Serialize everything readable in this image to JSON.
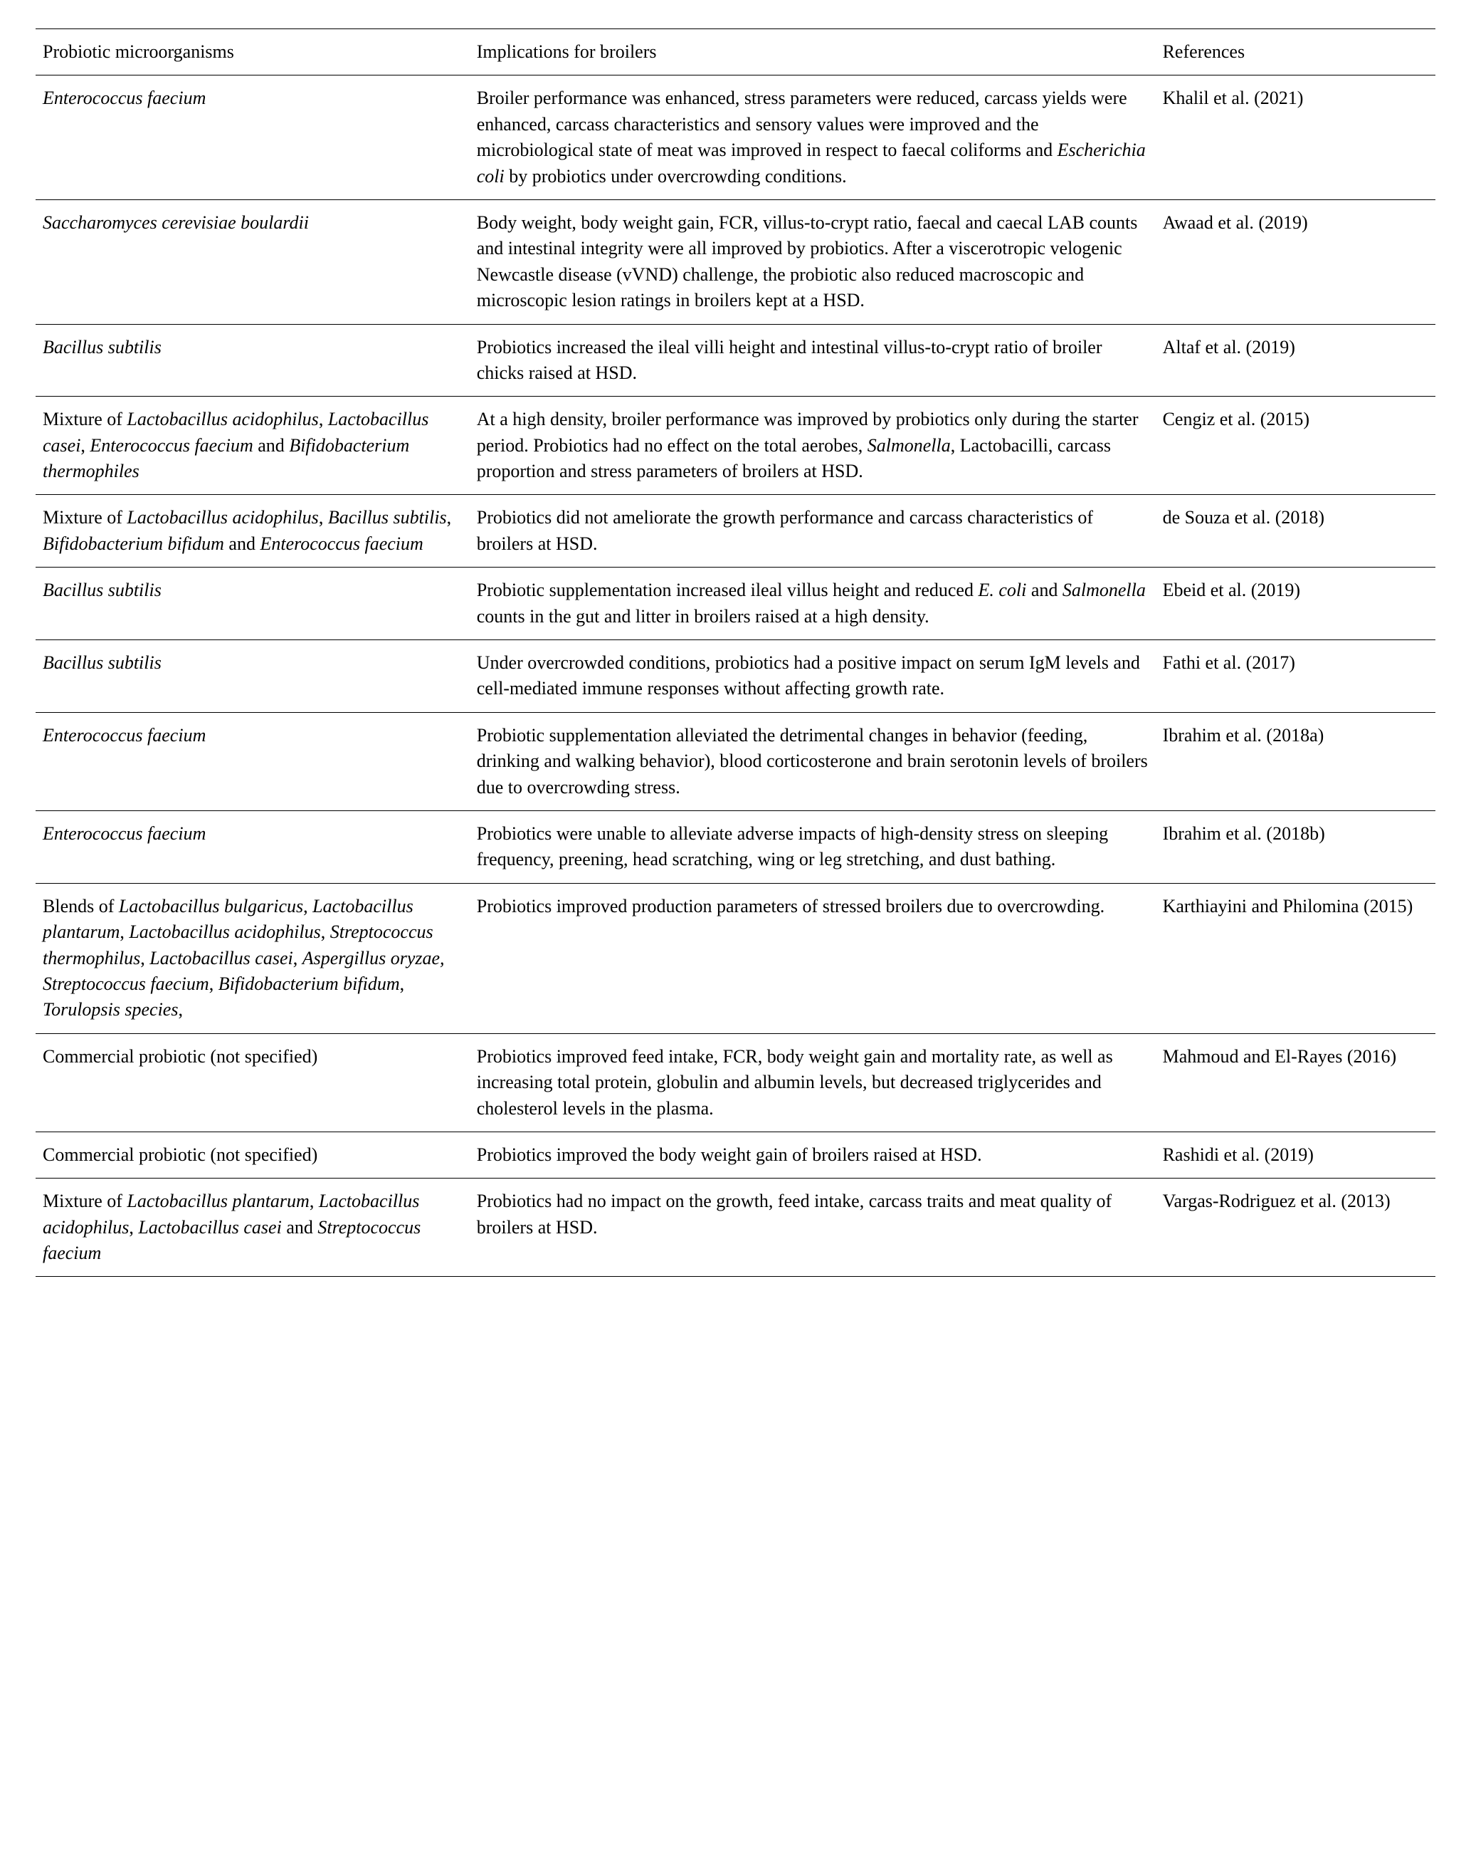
{
  "headers": {
    "col1": "Probiotic microorganisms",
    "col2": "Implications for broilers",
    "col3": "References"
  },
  "rows": [
    {
      "organism_html": "<span class='italic'>Enterococcus faecium</span>",
      "implications_html": "Broiler performance was enhanced, stress parameters were reduced, carcass yields were enhanced, carcass characteristics and sensory values were improved and the microbiological state of meat was improved in respect to faecal coliforms and <span class='italic'>Escherichia coli</span> by probiotics under overcrowding conditions.",
      "reference": "Khalil et al. (2021)"
    },
    {
      "organism_html": "<span class='italic'>Saccharomyces cerevisiae boulardii</span>",
      "implications_html": "Body weight, body weight gain, FCR, villus-to-crypt ratio, faecal and caecal LAB counts and intestinal integrity were all improved by probiotics. After a viscerotropic velogenic Newcastle disease (vVND) challenge, the probiotic also reduced macroscopic and microscopic lesion ratings in broilers kept at a HSD.",
      "reference": "Awaad et al. (2019)"
    },
    {
      "organism_html": "<span class='italic'>Bacillus subtilis</span>",
      "implications_html": "Probiotics increased the ileal villi height and intestinal villus-to-crypt ratio of broiler chicks raised at HSD.",
      "reference": "Altaf et al. (2019)"
    },
    {
      "organism_html": "Mixture of <span class='italic'>Lactobacillus acidophilus</span>, <span class='italic'>Lactobacillus casei</span>, <span class='italic'>Enterococcus faecium</span> and <span class='italic'>Bifidobacterium thermophiles</span>",
      "implications_html": "At a high density, broiler performance was improved by probiotics only during the starter period. Probiotics had no effect on the total aerobes, <span class='italic'>Salmonella</span>, Lactobacilli, carcass proportion and stress parameters of broilers at HSD.",
      "reference": "Cengiz et al. (2015)"
    },
    {
      "organism_html": "Mixture of <span class='italic'>Lactobacillus acidophilus</span>, <span class='italic'>Bacillus subtilis</span>, <span class='italic'>Bifidobacterium bifidum</span> and <span class='italic'>Enterococcus faecium</span>",
      "implications_html": "Probiotics did not ameliorate the growth performance and carcass characteristics of broilers at HSD.",
      "reference": "de Souza et al. (2018)"
    },
    {
      "organism_html": "<span class='italic'>Bacillus subtilis</span>",
      "implications_html": "Probiotic supplementation increased ileal villus height and reduced <span class='italic'>E. coli</span> and <span class='italic'>Salmonella</span> counts in the gut and litter in broilers raised at a high density.",
      "reference": "Ebeid et al. (2019)"
    },
    {
      "organism_html": "<span class='italic'>Bacillus subtilis</span>",
      "implications_html": "Under overcrowded conditions, probiotics had a positive impact on serum IgM levels and cell-mediated immune responses without affecting growth rate.",
      "reference": "Fathi et al. (2017)"
    },
    {
      "organism_html": "<span class='italic'>Enterococcus faecium</span>",
      "implications_html": "Probiotic supplementation alleviated the detrimental changes in behavior (feeding, drinking and walking behavior), blood corticosterone and brain serotonin levels of broilers due to overcrowding stress.",
      "reference": "Ibrahim et al. (2018a)"
    },
    {
      "organism_html": "<span class='italic'>Enterococcus faecium</span>",
      "implications_html": "Probiotics were unable to alleviate adverse impacts of high-density stress on sleeping frequency, preening, head scratching, wing or leg stretching, and dust bathing.",
      "reference": "Ibrahim et al. (2018b)"
    },
    {
      "organism_html": "Blends of <span class='italic'>Lactobacillus bulgaricus</span>, <span class='italic'>Lactobacillus plantarum</span>, <span class='italic'>Lactobacillus acidophilus</span>, <span class='italic'>Streptococcus thermophilus</span>, <span class='italic'>Lactobacillus casei</span>, <span class='italic'>Aspergillus oryzae,</span> <span class='italic'>Streptococcus faecium</span>, <span class='italic'>Bifidobacterium bifidum</span>, <span class='italic'>Torulopsis species</span>,",
      "implications_html": "Probiotics improved production parameters of stressed broilers due to overcrowding.",
      "reference": "Karthiayini and Philomina (2015)"
    },
    {
      "organism_html": "Commercial probiotic (not specified)",
      "implications_html": "Probiotics improved feed intake, FCR, body weight gain and mortality rate, as well as increasing total protein, globulin and albumin levels, but decreased triglycerides and cholesterol levels in the plasma.",
      "reference": "Mahmoud and El-Rayes (2016)"
    },
    {
      "organism_html": "Commercial probiotic (not specified)",
      "implications_html": "Probiotics improved the body weight gain of broilers raised at HSD.",
      "reference": "Rashidi et al. (2019)"
    },
    {
      "organism_html": "Mixture of <span class='italic'>Lactobacillus plantarum</span>, <span class='italic'>Lactobacillus acidophilus</span>, <span class='italic'>Lactobacillus casei</span> and <span class='italic'>Streptococcus faecium</span>",
      "implications_html": "Probiotics had no impact on the growth, feed intake, carcass traits and meat quality of broilers at HSD.",
      "reference": "Vargas-Rodriguez et al. (2013)"
    }
  ]
}
